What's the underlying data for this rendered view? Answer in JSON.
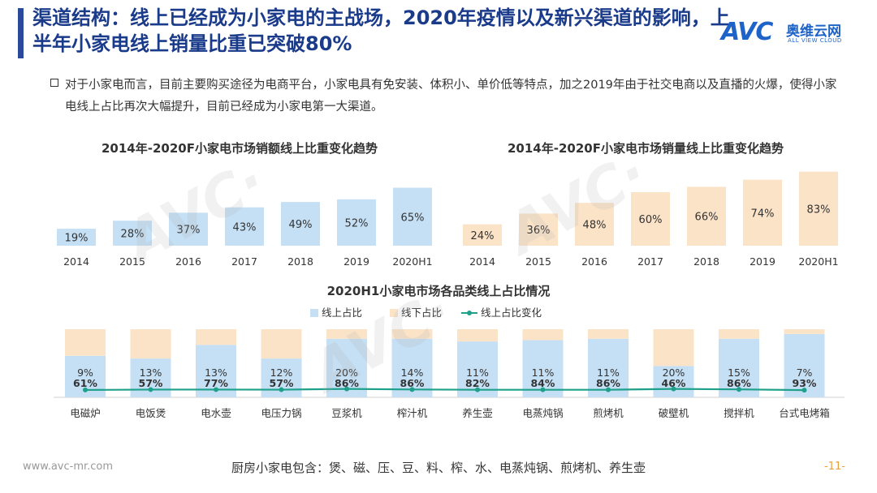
{
  "header": {
    "title": "渠道结构：线上已经成为小家电的主战场，2020年疫情以及新兴渠道的影响，上半年小家电线上销量比重已突破80%"
  },
  "logo": {
    "mark": "AVC",
    "name": "奥维云网",
    "tagline": "ALL VIEW CLOUD"
  },
  "description": "对于小家电而言，目前主要购买途径为电商平台，小家电具有免安装、体积小、单价低等特点，加之2019年由于社交电商以及直播的火爆，使得小家电线上占比再次大幅提升，目前已经成为小家电第一大渠道。",
  "colors": {
    "blue": "#c5e0f5",
    "peach": "#fbe3c8",
    "teal": "#1fa08a",
    "title_blue": "#1a3a8a"
  },
  "chart_data": [
    {
      "type": "bar",
      "title": "2014年-2020F小家电市场销额线上比重变化趋势",
      "categories": [
        "2014",
        "2015",
        "2016",
        "2017",
        "2018",
        "2019",
        "2020H1"
      ],
      "values": [
        19,
        28,
        37,
        43,
        49,
        52,
        65
      ],
      "labels": [
        "19%",
        "28%",
        "37%",
        "43%",
        "49%",
        "52%",
        "65%"
      ],
      "color": "#c5e0f5",
      "ylim": [
        0,
        100
      ]
    },
    {
      "type": "bar",
      "title": "2014年-2020F小家电市场销量线上比重变化趋势",
      "categories": [
        "2014",
        "2015",
        "2016",
        "2017",
        "2018",
        "2019",
        "2020H1"
      ],
      "values": [
        24,
        36,
        48,
        60,
        66,
        74,
        83
      ],
      "labels": [
        "24%",
        "36%",
        "48%",
        "60%",
        "66%",
        "74%",
        "83%"
      ],
      "color": "#fbe3c8",
      "ylim": [
        0,
        100
      ]
    },
    {
      "type": "bar",
      "title": "2020H1小家电市场各品类线上占比情况",
      "legend": [
        "线上占比",
        "线下占比",
        "线上占比变化"
      ],
      "categories": [
        "电磁炉",
        "电饭煲",
        "电水壶",
        "电压力锅",
        "豆浆机",
        "榨汁机",
        "养生壶",
        "电蒸炖锅",
        "煎烤机",
        "破壁机",
        "搅拌机",
        "台式电烤箱"
      ],
      "series": [
        {
          "name": "线上占比",
          "values": [
            61,
            57,
            77,
            57,
            86,
            86,
            82,
            84,
            86,
            46,
            86,
            93
          ],
          "labels": [
            "61%",
            "57%",
            "77%",
            "57%",
            "86%",
            "86%",
            "82%",
            "84%",
            "86%",
            "46%",
            "86%",
            "93%"
          ]
        },
        {
          "name": "线下占比",
          "values": [
            39,
            43,
            23,
            43,
            14,
            14,
            18,
            16,
            14,
            54,
            14,
            7
          ]
        },
        {
          "name": "线上占比变化",
          "values": [
            9,
            13,
            13,
            12,
            20,
            14,
            11,
            11,
            11,
            20,
            15,
            7
          ],
          "labels": [
            "9%",
            "13%",
            "13%",
            "12%",
            "20%",
            "14%",
            "11%",
            "11%",
            "11%",
            "20%",
            "15%",
            "7%"
          ]
        }
      ],
      "ylim": [
        0,
        100
      ]
    }
  ],
  "footer": {
    "url": "www.avc-mr.com",
    "note": "厨房小家电包含：煲、磁、压、豆、料、榨、水、电蒸炖锅、煎烤机、养生壶",
    "page": "-11-"
  }
}
